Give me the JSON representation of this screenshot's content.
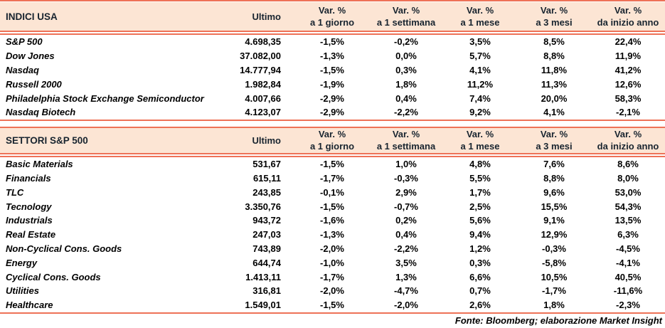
{
  "columns": {
    "ultimo": "Ultimo",
    "var_label": "Var. %",
    "periods": [
      "a 1 giorno",
      "a 1 settimana",
      "a 1 mese",
      "a 3 mesi",
      "da inizio anno"
    ]
  },
  "indici": {
    "title": "INDICI USA",
    "rows": [
      {
        "label": "S&P 500",
        "ultimo": "4.698,35",
        "vars": [
          "-1,5%",
          "-0,2%",
          "3,5%",
          "8,5%",
          "22,4%"
        ]
      },
      {
        "label": "Dow Jones",
        "ultimo": "37.082,00",
        "vars": [
          "-1,3%",
          "0,0%",
          "5,7%",
          "8,8%",
          "11,9%"
        ]
      },
      {
        "label": "Nasdaq",
        "ultimo": "14.777,94",
        "vars": [
          "-1,5%",
          "0,3%",
          "4,1%",
          "11,8%",
          "41,2%"
        ]
      },
      {
        "label": "Russell 2000",
        "ultimo": "1.982,84",
        "vars": [
          "-1,9%",
          "1,8%",
          "11,2%",
          "11,3%",
          "12,6%"
        ]
      },
      {
        "label": "Philadelphia Stock Exchange Semiconductor",
        "ultimo": "4.007,66",
        "vars": [
          "-2,9%",
          "0,4%",
          "7,4%",
          "20,0%",
          "58,3%"
        ]
      },
      {
        "label": "Nasdaq Biotech",
        "ultimo": "4.123,07",
        "vars": [
          "-2,9%",
          "-2,2%",
          "9,2%",
          "4,1%",
          "-2,1%"
        ]
      }
    ]
  },
  "settori": {
    "title": "SETTORI S&P 500",
    "rows": [
      {
        "label": "Basic Materials",
        "ultimo": "531,67",
        "vars": [
          "-1,5%",
          "1,0%",
          "4,8%",
          "7,6%",
          "8,6%"
        ]
      },
      {
        "label": "Financials",
        "ultimo": "615,11",
        "vars": [
          "-1,7%",
          "-0,3%",
          "5,5%",
          "8,8%",
          "8,0%"
        ]
      },
      {
        "label": "TLC",
        "ultimo": "243,85",
        "vars": [
          "-0,1%",
          "2,9%",
          "1,7%",
          "9,6%",
          "53,0%"
        ]
      },
      {
        "label": "Tecnology",
        "ultimo": "3.350,76",
        "vars": [
          "-1,5%",
          "-0,7%",
          "2,5%",
          "15,5%",
          "54,3%"
        ]
      },
      {
        "label": "Industrials",
        "ultimo": "943,72",
        "vars": [
          "-1,6%",
          "0,2%",
          "5,6%",
          "9,1%",
          "13,5%"
        ]
      },
      {
        "label": "Real Estate",
        "ultimo": "247,03",
        "vars": [
          "-1,3%",
          "0,4%",
          "9,4%",
          "12,9%",
          "6,3%"
        ]
      },
      {
        "label": "Non-Cyclical Cons. Goods",
        "ultimo": "743,89",
        "vars": [
          "-2,0%",
          "-2,2%",
          "1,2%",
          "-0,3%",
          "-4,5%"
        ]
      },
      {
        "label": "Energy",
        "ultimo": "644,74",
        "vars": [
          "-1,0%",
          "3,5%",
          "0,3%",
          "-5,8%",
          "-4,1%"
        ]
      },
      {
        "label": "Cyclical Cons. Goods",
        "ultimo": "1.413,11",
        "vars": [
          "-1,7%",
          "1,3%",
          "6,6%",
          "10,5%",
          "40,5%"
        ]
      },
      {
        "label": "Utilities",
        "ultimo": "316,81",
        "vars": [
          "-2,0%",
          "-4,7%",
          "0,7%",
          "-1,7%",
          "-11,6%"
        ]
      },
      {
        "label": "Healthcare",
        "ultimo": "1.549,01",
        "vars": [
          "-1,5%",
          "-2,0%",
          "2,6%",
          "1,8%",
          "-2,3%"
        ]
      }
    ]
  },
  "footer": "Fonte: Bloomberg; elaborazione Market Insight",
  "colors": {
    "accent_line": "#EE7257",
    "header_bg": "#FCE5D4",
    "header_text": "#18242F",
    "body_text": "#000000"
  }
}
